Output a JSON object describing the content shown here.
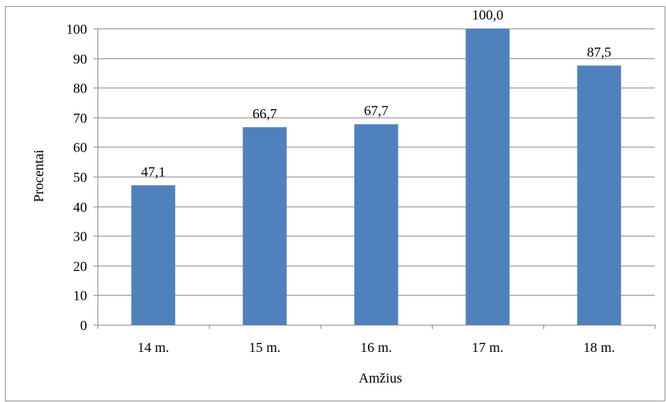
{
  "chart_data": {
    "type": "bar",
    "categories": [
      "14 m.",
      "15 m.",
      "16 m.",
      "17 m.",
      "18 m."
    ],
    "values": [
      47.1,
      66.7,
      67.7,
      100.0,
      87.5
    ],
    "data_labels": [
      "47,1",
      "66,7",
      "67,7",
      "100,0",
      "87,5"
    ],
    "xlabel": "Amžius",
    "ylabel": "Procentai",
    "ylim": [
      0,
      100
    ],
    "yticks": [
      0,
      10,
      20,
      30,
      40,
      50,
      60,
      70,
      80,
      90,
      100
    ],
    "ytick_labels": [
      "0",
      "10",
      "20",
      "30",
      "40",
      "50",
      "60",
      "70",
      "80",
      "90",
      "100"
    ],
    "grid": true,
    "legend": "none",
    "colors": {
      "bar": "#4f81bd",
      "grid": "#868686",
      "axis": "#868686"
    }
  }
}
